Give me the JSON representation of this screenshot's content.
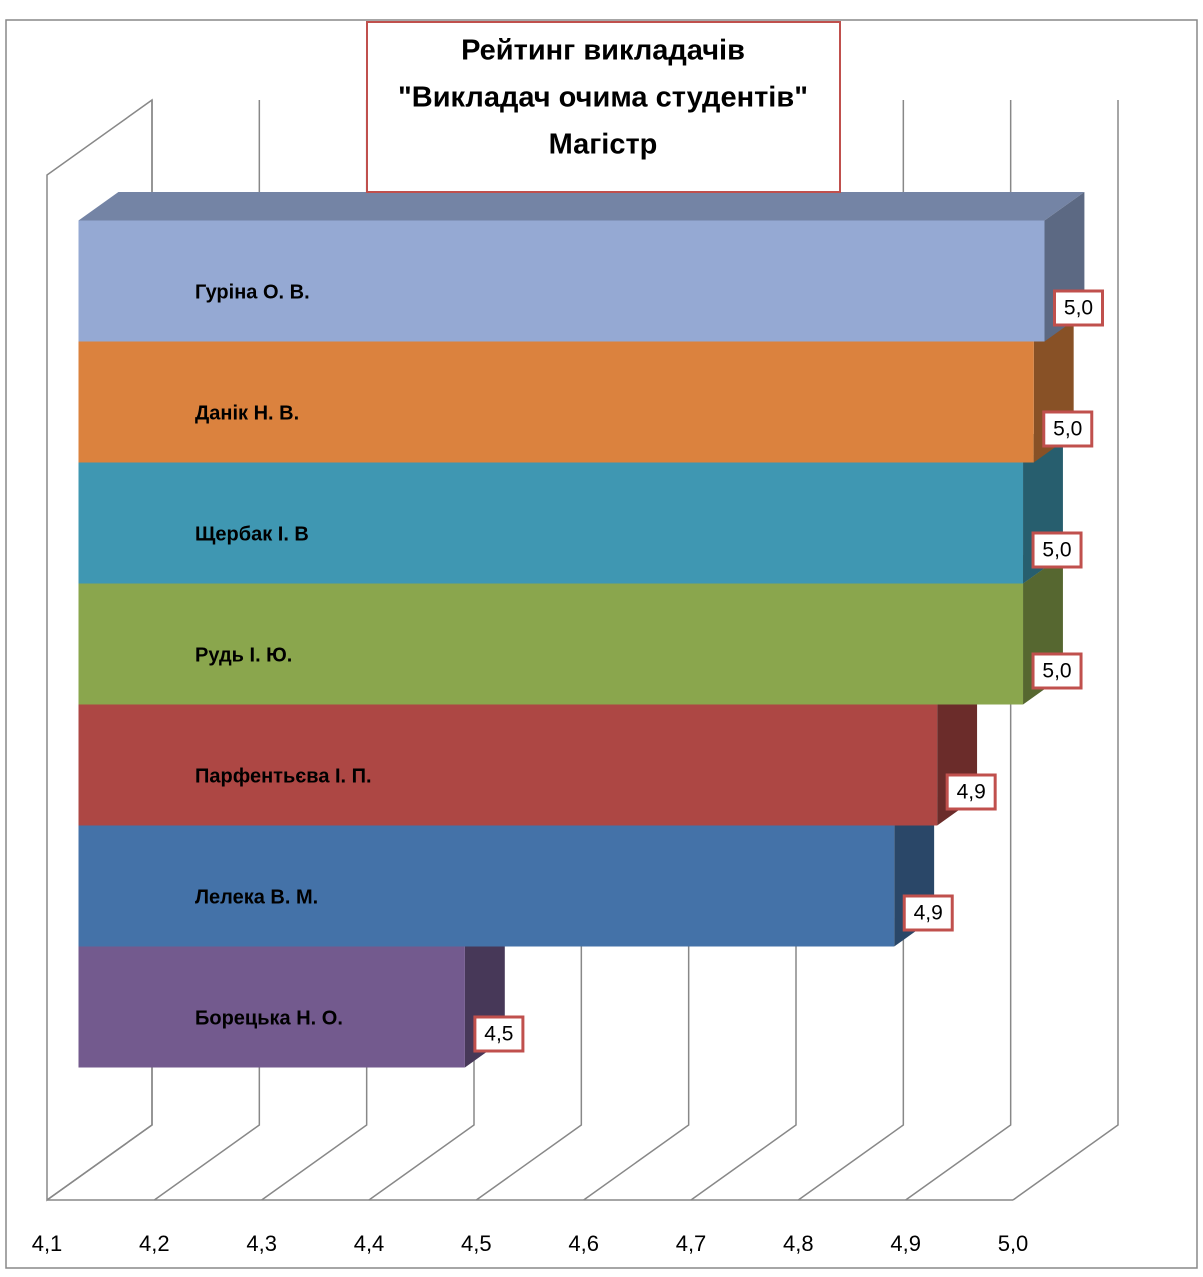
{
  "chart_data": {
    "type": "bar",
    "orientation": "horizontal",
    "title": [
      "Рейтинг викладачів",
      "\"Викладач очима студентів\"",
      "Магістр"
    ],
    "categories": [
      "Гуріна О. В.",
      "Данік Н. В.",
      "Щербак І. В",
      "Рудь І. Ю.",
      "Парфентьєва І. П.",
      "Лелека В. М.",
      "Борецька Н. О."
    ],
    "values": [
      5.0,
      4.99,
      4.98,
      4.98,
      4.9,
      4.86,
      4.46
    ],
    "value_labels": [
      "5,0",
      "5,0",
      "5,0",
      "5,0",
      "4,9",
      "4,9",
      "4,5"
    ],
    "colors": [
      "#95a9d3",
      "#db823e",
      "#3f97b2",
      "#8aa64d",
      "#ad4744",
      "#4472a8",
      "#735a8e"
    ],
    "xlim": [
      4.1,
      5.0
    ],
    "xticks": [
      {
        "value": 4.1,
        "label": "4,1"
      },
      {
        "value": 4.2,
        "label": "4,2"
      },
      {
        "value": 4.3,
        "label": "4,3"
      },
      {
        "value": 4.4,
        "label": "4,4"
      },
      {
        "value": 4.5,
        "label": "4,5"
      },
      {
        "value": 4.6,
        "label": "4,6"
      },
      {
        "value": 4.7,
        "label": "4,7"
      },
      {
        "value": 4.8,
        "label": "4,8"
      },
      {
        "value": 4.9,
        "label": "4,9"
      },
      {
        "value": 5.0,
        "label": "5,0"
      }
    ],
    "grid": true
  }
}
